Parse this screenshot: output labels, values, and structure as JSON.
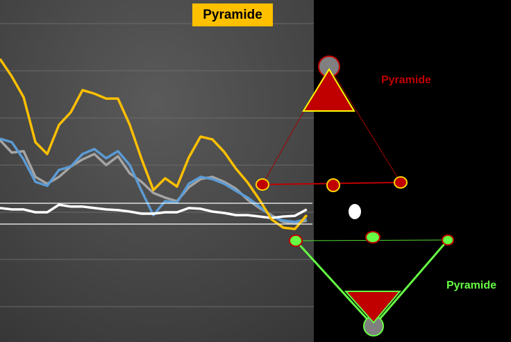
{
  "chart_data": {
    "type": "line",
    "title": "Pyramide",
    "annotations": [
      "Pyramide",
      "Pyramide"
    ],
    "x": [
      0,
      1,
      2,
      3,
      4,
      5,
      6,
      7,
      8,
      9,
      10,
      11,
      12,
      13,
      14,
      15,
      16,
      17,
      18,
      19,
      20,
      21,
      22,
      23,
      24,
      25,
      26
    ],
    "xlim": [
      0,
      26.6
    ],
    "ylim": [
      0,
      145
    ],
    "yticks": [
      15,
      35,
      55,
      75,
      95,
      115,
      135
    ],
    "grid": true,
    "series": [
      {
        "color": "#a5a5a5",
        "values": [
          85.6,
          80.3,
          80.9,
          70.0,
          67.1,
          70.0,
          74.4,
          77.4,
          79.7,
          75.0,
          78.8,
          71.5,
          67.9,
          63.2,
          61.2,
          59.7,
          65.6,
          69.1,
          70.0,
          67.9,
          65.0,
          60.3,
          56.8,
          53.8,
          50.9,
          50.3,
          51.5
        ]
      },
      {
        "color": "#5b9bd5",
        "values": [
          86.2,
          84.7,
          77.4,
          67.9,
          66.2,
          72.9,
          74.4,
          79.7,
          81.8,
          77.9,
          80.9,
          75.0,
          64.1,
          53.8,
          59.7,
          59.1,
          67.1,
          70.0,
          69.1,
          67.1,
          64.1,
          61.2,
          57.4,
          53.2,
          51.5,
          50.9,
          52.1
        ]
      },
      {
        "color": "#ffffff",
        "values": [
          56.8,
          56.2,
          56.2,
          55.0,
          55.0,
          58.2,
          57.4,
          57.4,
          56.8,
          56.2,
          55.9,
          55.3,
          54.4,
          54.4,
          55.0,
          55.0,
          56.8,
          56.5,
          55.3,
          54.7,
          53.8,
          53.8,
          53.2,
          52.6,
          53.2,
          53.5,
          56.2
        ]
      },
      {
        "color": "#ffc000",
        "values": [
          120.0,
          112.6,
          103.8,
          84.7,
          79.7,
          92.1,
          97.4,
          106.8,
          105.3,
          103.2,
          103.2,
          92.1,
          77.6,
          64.4,
          69.4,
          65.9,
          78.2,
          87.1,
          85.9,
          80.6,
          73.5,
          67.6,
          60.3,
          52.1,
          48.5,
          47.9,
          53.8
        ]
      }
    ]
  }
}
